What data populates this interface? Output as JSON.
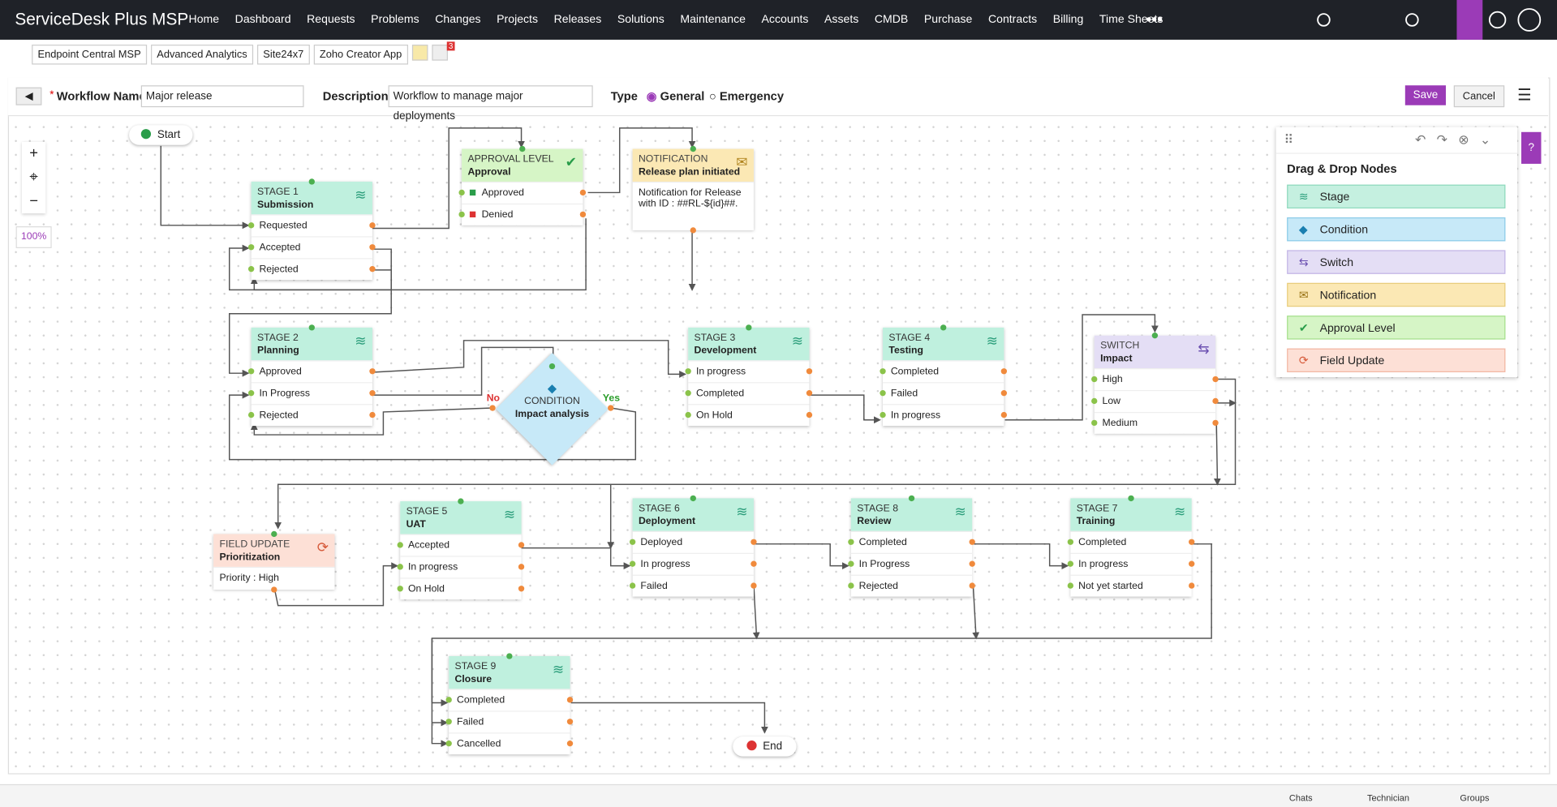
{
  "header": {
    "brand": "ServiceDesk Plus MSP",
    "nav": [
      "Home",
      "Dashboard",
      "Requests",
      "Problems",
      "Changes",
      "Projects",
      "Releases",
      "Solutions",
      "Maintenance",
      "Accounts",
      "Assets",
      "CMDB",
      "Purchase",
      "Contracts",
      "Billing",
      "Time Sheets"
    ]
  },
  "toolbar": {
    "apps": [
      "Endpoint Central MSP",
      "Advanced Analytics",
      "Site24x7",
      "Zoho Creator App"
    ],
    "badge": "3"
  },
  "form": {
    "name_label": "Workflow Name",
    "name": "Major release",
    "description_label": "Description",
    "description": "Workflow to manage major deployments",
    "type_label": "Type",
    "type_options": [
      "General",
      "Emergency"
    ],
    "save": "Save",
    "cancel": "Cancel"
  },
  "canvas": {
    "zoom": "100%",
    "start": "Start",
    "end": "End",
    "no": "No",
    "yes": "Yes",
    "nodes": [
      {
        "kind": "STAGE 1",
        "name": "Submission",
        "items": [
          "Requested",
          "Accepted",
          "Rejected"
        ]
      },
      {
        "kind": "APPROVAL LEVEL",
        "name": "Approval",
        "items": [
          "Approved",
          "Denied"
        ]
      },
      {
        "kind": "NOTIFICATION",
        "name": "Release plan initiated",
        "body": "Notification for Release with ID : ##RL-${id}##."
      },
      {
        "kind": "STAGE 2",
        "name": "Planning",
        "items": [
          "Approved",
          "In Progress",
          "Rejected"
        ]
      },
      {
        "kind": "CONDITION",
        "name": "Impact analysis"
      },
      {
        "kind": "STAGE 3",
        "name": "Development",
        "items": [
          "In progress",
          "Completed",
          "On Hold"
        ]
      },
      {
        "kind": "STAGE 4",
        "name": "Testing",
        "items": [
          "Completed",
          "Failed",
          "In progress"
        ]
      },
      {
        "kind": "SWITCH",
        "name": "Impact",
        "items": [
          "High",
          "Low",
          "Medium"
        ]
      },
      {
        "kind": "FIELD UPDATE",
        "name": "Prioritization",
        "body": "Priority : High"
      },
      {
        "kind": "STAGE 5",
        "name": "UAT",
        "items": [
          "Accepted",
          "In progress",
          "On Hold"
        ]
      },
      {
        "kind": "STAGE 6",
        "name": "Deployment",
        "items": [
          "Deployed",
          "In progress",
          "Failed"
        ]
      },
      {
        "kind": "STAGE 8",
        "name": "Review",
        "items": [
          "Completed",
          "In Progress",
          "Rejected"
        ]
      },
      {
        "kind": "STAGE 7",
        "name": "Training",
        "items": [
          "Completed",
          "In progress",
          "Not yet started"
        ]
      },
      {
        "kind": "STAGE 9",
        "name": "Closure",
        "items": [
          "Completed",
          "Failed",
          "Cancelled"
        ]
      }
    ]
  },
  "palette": {
    "title": "Drag & Drop Nodes",
    "items": [
      "Stage",
      "Condition",
      "Switch",
      "Notification",
      "Approval Level",
      "Field Update"
    ]
  },
  "footer": [
    "Chats",
    "Technician",
    "Groups"
  ]
}
